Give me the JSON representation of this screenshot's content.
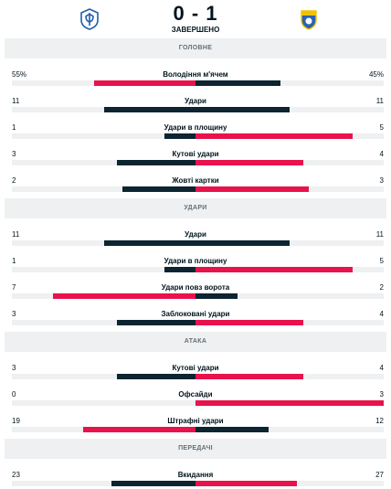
{
  "match": {
    "score": "0 - 1",
    "status": "ЗАВЕРШЕНО",
    "home_logo_icon": "dynamo-kyiv-crest-icon",
    "away_logo_icon": "away-team-crest-icon"
  },
  "colors": {
    "leader": "#e8124c",
    "trailer": "#0d2431",
    "track": "#eef0f1",
    "section_bg": "#eef0f1"
  },
  "sections": [
    {
      "title": "ГОЛОВНЕ",
      "stats": [
        {
          "name": "Володіння м'ячем",
          "home": "55%",
          "away": "45%",
          "home_share": 0.55,
          "away_share": 0.45
        },
        {
          "name": "Удари",
          "home": "11",
          "away": "11",
          "home_share": 0.5,
          "away_share": 0.5
        },
        {
          "name": "Удари в площину",
          "home": "1",
          "away": "5",
          "home_share": 0.167,
          "away_share": 0.833
        },
        {
          "name": "Кутові удари",
          "home": "3",
          "away": "4",
          "home_share": 0.429,
          "away_share": 0.571
        },
        {
          "name": "Жовті картки",
          "home": "2",
          "away": "3",
          "home_share": 0.4,
          "away_share": 0.6
        }
      ]
    },
    {
      "title": "УДАРИ",
      "stats": [
        {
          "name": "Удари",
          "home": "11",
          "away": "11",
          "home_share": 0.5,
          "away_share": 0.5
        },
        {
          "name": "Удари в площину",
          "home": "1",
          "away": "5",
          "home_share": 0.167,
          "away_share": 0.833
        },
        {
          "name": "Удари повз ворота",
          "home": "7",
          "away": "2",
          "home_share": 0.778,
          "away_share": 0.222
        },
        {
          "name": "Заблоковані удари",
          "home": "3",
          "away": "4",
          "home_share": 0.429,
          "away_share": 0.571
        }
      ]
    },
    {
      "title": "АТАКА",
      "stats": [
        {
          "name": "Кутові удари",
          "home": "3",
          "away": "4",
          "home_share": 0.429,
          "away_share": 0.571
        },
        {
          "name": "Офсайди",
          "home": "0",
          "away": "3",
          "home_share": 0.0,
          "away_share": 1.0
        },
        {
          "name": "Штрафні удари",
          "home": "19",
          "away": "12",
          "home_share": 0.613,
          "away_share": 0.387
        }
      ]
    },
    {
      "title": "ПЕРЕДАЧІ",
      "stats": [
        {
          "name": "Вкидання",
          "home": "23",
          "away": "27",
          "home_share": 0.46,
          "away_share": 0.54
        }
      ]
    }
  ]
}
